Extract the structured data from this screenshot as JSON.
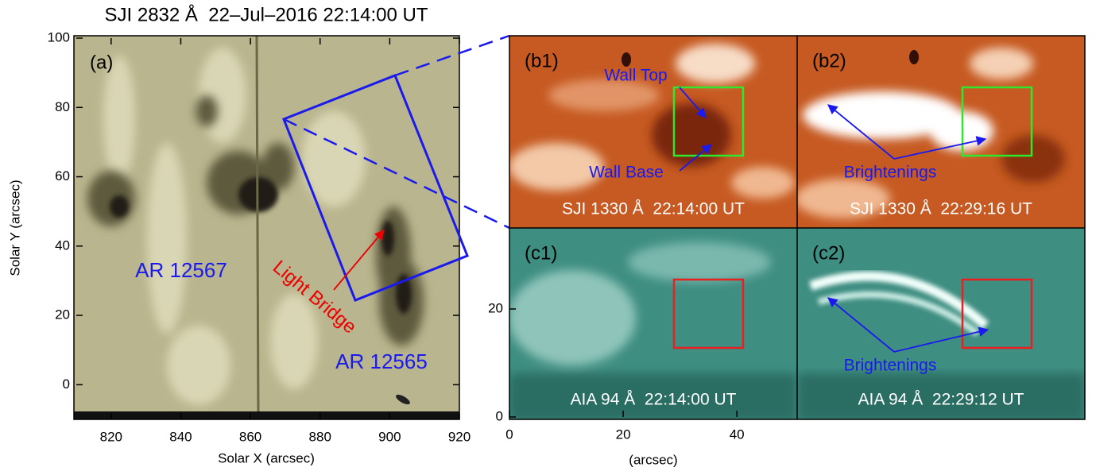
{
  "panel_a": {
    "title": "SJI 2832 Å  22–Jul–2016 22:14:00 UT",
    "label": "(a)",
    "x_label": "Solar X (arcsec)",
    "y_label": "Solar Y (arcsec)",
    "xlim": [
      810,
      920
    ],
    "ylim": [
      -10,
      100
    ],
    "xticks": [
      820,
      840,
      860,
      880,
      900,
      920
    ],
    "yticks": [
      0,
      20,
      40,
      60,
      80,
      100
    ],
    "regions": [
      "AR 12567",
      "AR 12565"
    ],
    "feature": "Light Bridge"
  },
  "panels": [
    {
      "label": "(b1)",
      "caption": "SJI 1330 Å  22:14:00 UT"
    },
    {
      "label": "(b2)",
      "caption": "SJI 1330 Å  22:29:16 UT"
    },
    {
      "label": "(c1)",
      "caption": "AIA 94 Å  22:14:00 UT"
    },
    {
      "label": "(c2)",
      "caption": "AIA 94 Å  22:29:12 UT"
    }
  ],
  "annotations": {
    "wall_top": "Wall Top",
    "wall_base": "Wall Base",
    "brightenings_b2": "Brightenings",
    "brightenings_c2": "Brightenings"
  },
  "zoom_axes": {
    "x_label": "(arcsec)",
    "xlim": [
      0,
      50.6
    ],
    "ylim": [
      0,
      35
    ],
    "xticks": [
      0,
      20,
      40
    ],
    "yticks": [
      0,
      20
    ]
  }
}
